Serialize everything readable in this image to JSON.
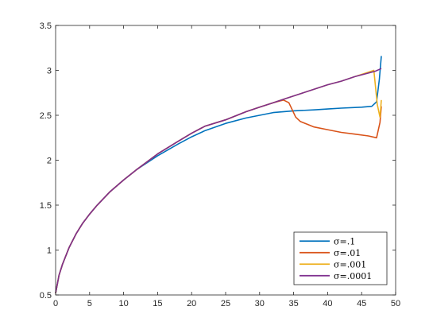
{
  "chart_data": {
    "type": "line",
    "title": "",
    "xlabel": "",
    "ylabel": "",
    "xlim": [
      0,
      50
    ],
    "ylim": [
      0.5,
      3.5
    ],
    "xticks": [
      "0",
      "5",
      "10",
      "15",
      "20",
      "25",
      "30",
      "35",
      "40",
      "45",
      "50"
    ],
    "yticks": [
      "0.5",
      "1",
      "1.5",
      "2",
      "2.5",
      "3",
      "3.5"
    ],
    "grid": false,
    "legend_position": "bottom-right",
    "series": [
      {
        "name": "σ=.1",
        "color": "#0072BD",
        "x": [
          0,
          0.5,
          1,
          2,
          3,
          4,
          5,
          6,
          8,
          10,
          12,
          15,
          18,
          20,
          22,
          25,
          28,
          30,
          32,
          35,
          38,
          40,
          42,
          45,
          46.5,
          47.2,
          47.6,
          47.9
        ],
        "y": [
          0.52,
          0.72,
          0.84,
          1.03,
          1.18,
          1.3,
          1.4,
          1.49,
          1.65,
          1.78,
          1.9,
          2.05,
          2.18,
          2.26,
          2.33,
          2.41,
          2.47,
          2.5,
          2.53,
          2.55,
          2.56,
          2.57,
          2.58,
          2.59,
          2.6,
          2.65,
          2.9,
          3.16
        ]
      },
      {
        "name": "σ=.01",
        "color": "#D95319",
        "x": [
          0,
          0.5,
          1,
          2,
          3,
          4,
          5,
          6,
          8,
          10,
          12,
          15,
          18,
          20,
          22,
          25,
          28,
          30,
          32,
          33.5,
          34.3,
          34.8,
          35.3,
          36,
          37,
          38,
          40,
          42,
          44,
          46,
          47.2,
          47.7,
          47.9
        ],
        "y": [
          0.52,
          0.72,
          0.84,
          1.03,
          1.18,
          1.3,
          1.4,
          1.49,
          1.65,
          1.78,
          1.9,
          2.07,
          2.21,
          2.3,
          2.38,
          2.45,
          2.54,
          2.59,
          2.64,
          2.67,
          2.64,
          2.56,
          2.48,
          2.43,
          2.4,
          2.37,
          2.34,
          2.31,
          2.29,
          2.27,
          2.25,
          2.42,
          2.6
        ]
      },
      {
        "name": "σ=.001",
        "color": "#EDB120",
        "x": [
          0,
          0.5,
          1,
          2,
          3,
          4,
          5,
          6,
          8,
          10,
          12,
          15,
          18,
          20,
          22,
          25,
          28,
          30,
          32,
          34,
          36,
          38,
          40,
          42,
          44,
          46,
          46.8,
          47.3,
          47.7,
          47.9
        ],
        "y": [
          0.52,
          0.72,
          0.84,
          1.03,
          1.18,
          1.3,
          1.4,
          1.49,
          1.65,
          1.78,
          1.9,
          2.07,
          2.21,
          2.3,
          2.38,
          2.45,
          2.54,
          2.59,
          2.64,
          2.69,
          2.74,
          2.79,
          2.84,
          2.88,
          2.93,
          2.98,
          3.0,
          2.62,
          2.48,
          2.67
        ]
      },
      {
        "name": "σ=.0001",
        "color": "#7E2F8E",
        "x": [
          0,
          0.5,
          1,
          2,
          3,
          4,
          5,
          6,
          8,
          10,
          12,
          15,
          18,
          20,
          22,
          25,
          28,
          30,
          32,
          34,
          36,
          38,
          40,
          42,
          44,
          46,
          47,
          47.9
        ],
        "y": [
          0.52,
          0.72,
          0.84,
          1.03,
          1.18,
          1.3,
          1.4,
          1.49,
          1.65,
          1.78,
          1.9,
          2.07,
          2.21,
          2.3,
          2.38,
          2.45,
          2.54,
          2.59,
          2.64,
          2.69,
          2.74,
          2.79,
          2.84,
          2.88,
          2.93,
          2.97,
          2.99,
          3.02
        ]
      }
    ]
  }
}
